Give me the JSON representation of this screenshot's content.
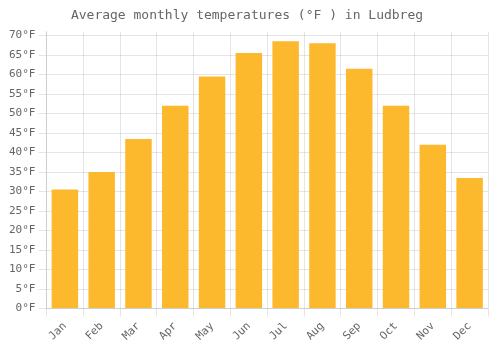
{
  "chart_data": {
    "type": "bar",
    "title": "Average monthly temperatures (°F ) in Ludbreg",
    "categories": [
      "Jan",
      "Feb",
      "Mar",
      "Apr",
      "May",
      "Jun",
      "Jul",
      "Aug",
      "Sep",
      "Oct",
      "Nov",
      "Dec"
    ],
    "values": [
      30.5,
      35.0,
      43.5,
      52.0,
      59.5,
      65.5,
      68.5,
      68.0,
      61.5,
      52.0,
      42.0,
      33.5
    ],
    "color": "#FDB92E",
    "ylim": [
      0,
      71
    ],
    "yticks": [
      {
        "value": 0,
        "label": "0°F"
      },
      {
        "value": 5,
        "label": "5°F"
      },
      {
        "value": 10,
        "label": "10°F"
      },
      {
        "value": 15,
        "label": "15°F"
      },
      {
        "value": 20,
        "label": "20°F"
      },
      {
        "value": 25,
        "label": "25°F"
      },
      {
        "value": 30,
        "label": "30°F"
      },
      {
        "value": 35,
        "label": "35°F"
      },
      {
        "value": 40,
        "label": "40°F"
      },
      {
        "value": 45,
        "label": "45°F"
      },
      {
        "value": 50,
        "label": "50°F"
      },
      {
        "value": 55,
        "label": "55°F"
      },
      {
        "value": 60,
        "label": "60°F"
      },
      {
        "value": 65,
        "label": "65°F"
      },
      {
        "value": 70,
        "label": "70°F"
      }
    ],
    "grid": true
  }
}
